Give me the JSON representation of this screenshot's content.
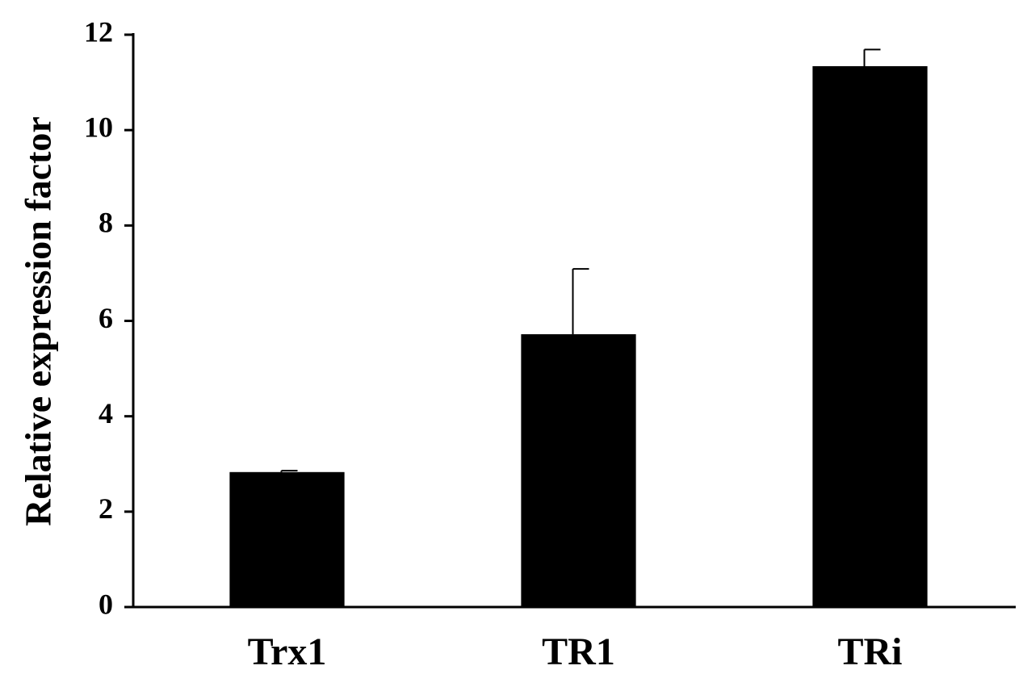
{
  "chart_data": {
    "type": "bar",
    "y_label": "Relative expression factor",
    "categories": [
      "Trx1",
      "TR1",
      "TRi"
    ],
    "values": [
      2.83,
      5.72,
      11.34
    ],
    "errors": [
      0.03,
      1.37,
      0.35
    ],
    "color": "#000000",
    "ylim": [
      0,
      12
    ],
    "yticks": [
      0,
      2,
      4,
      6,
      8,
      10,
      12
    ],
    "grid": false
  }
}
